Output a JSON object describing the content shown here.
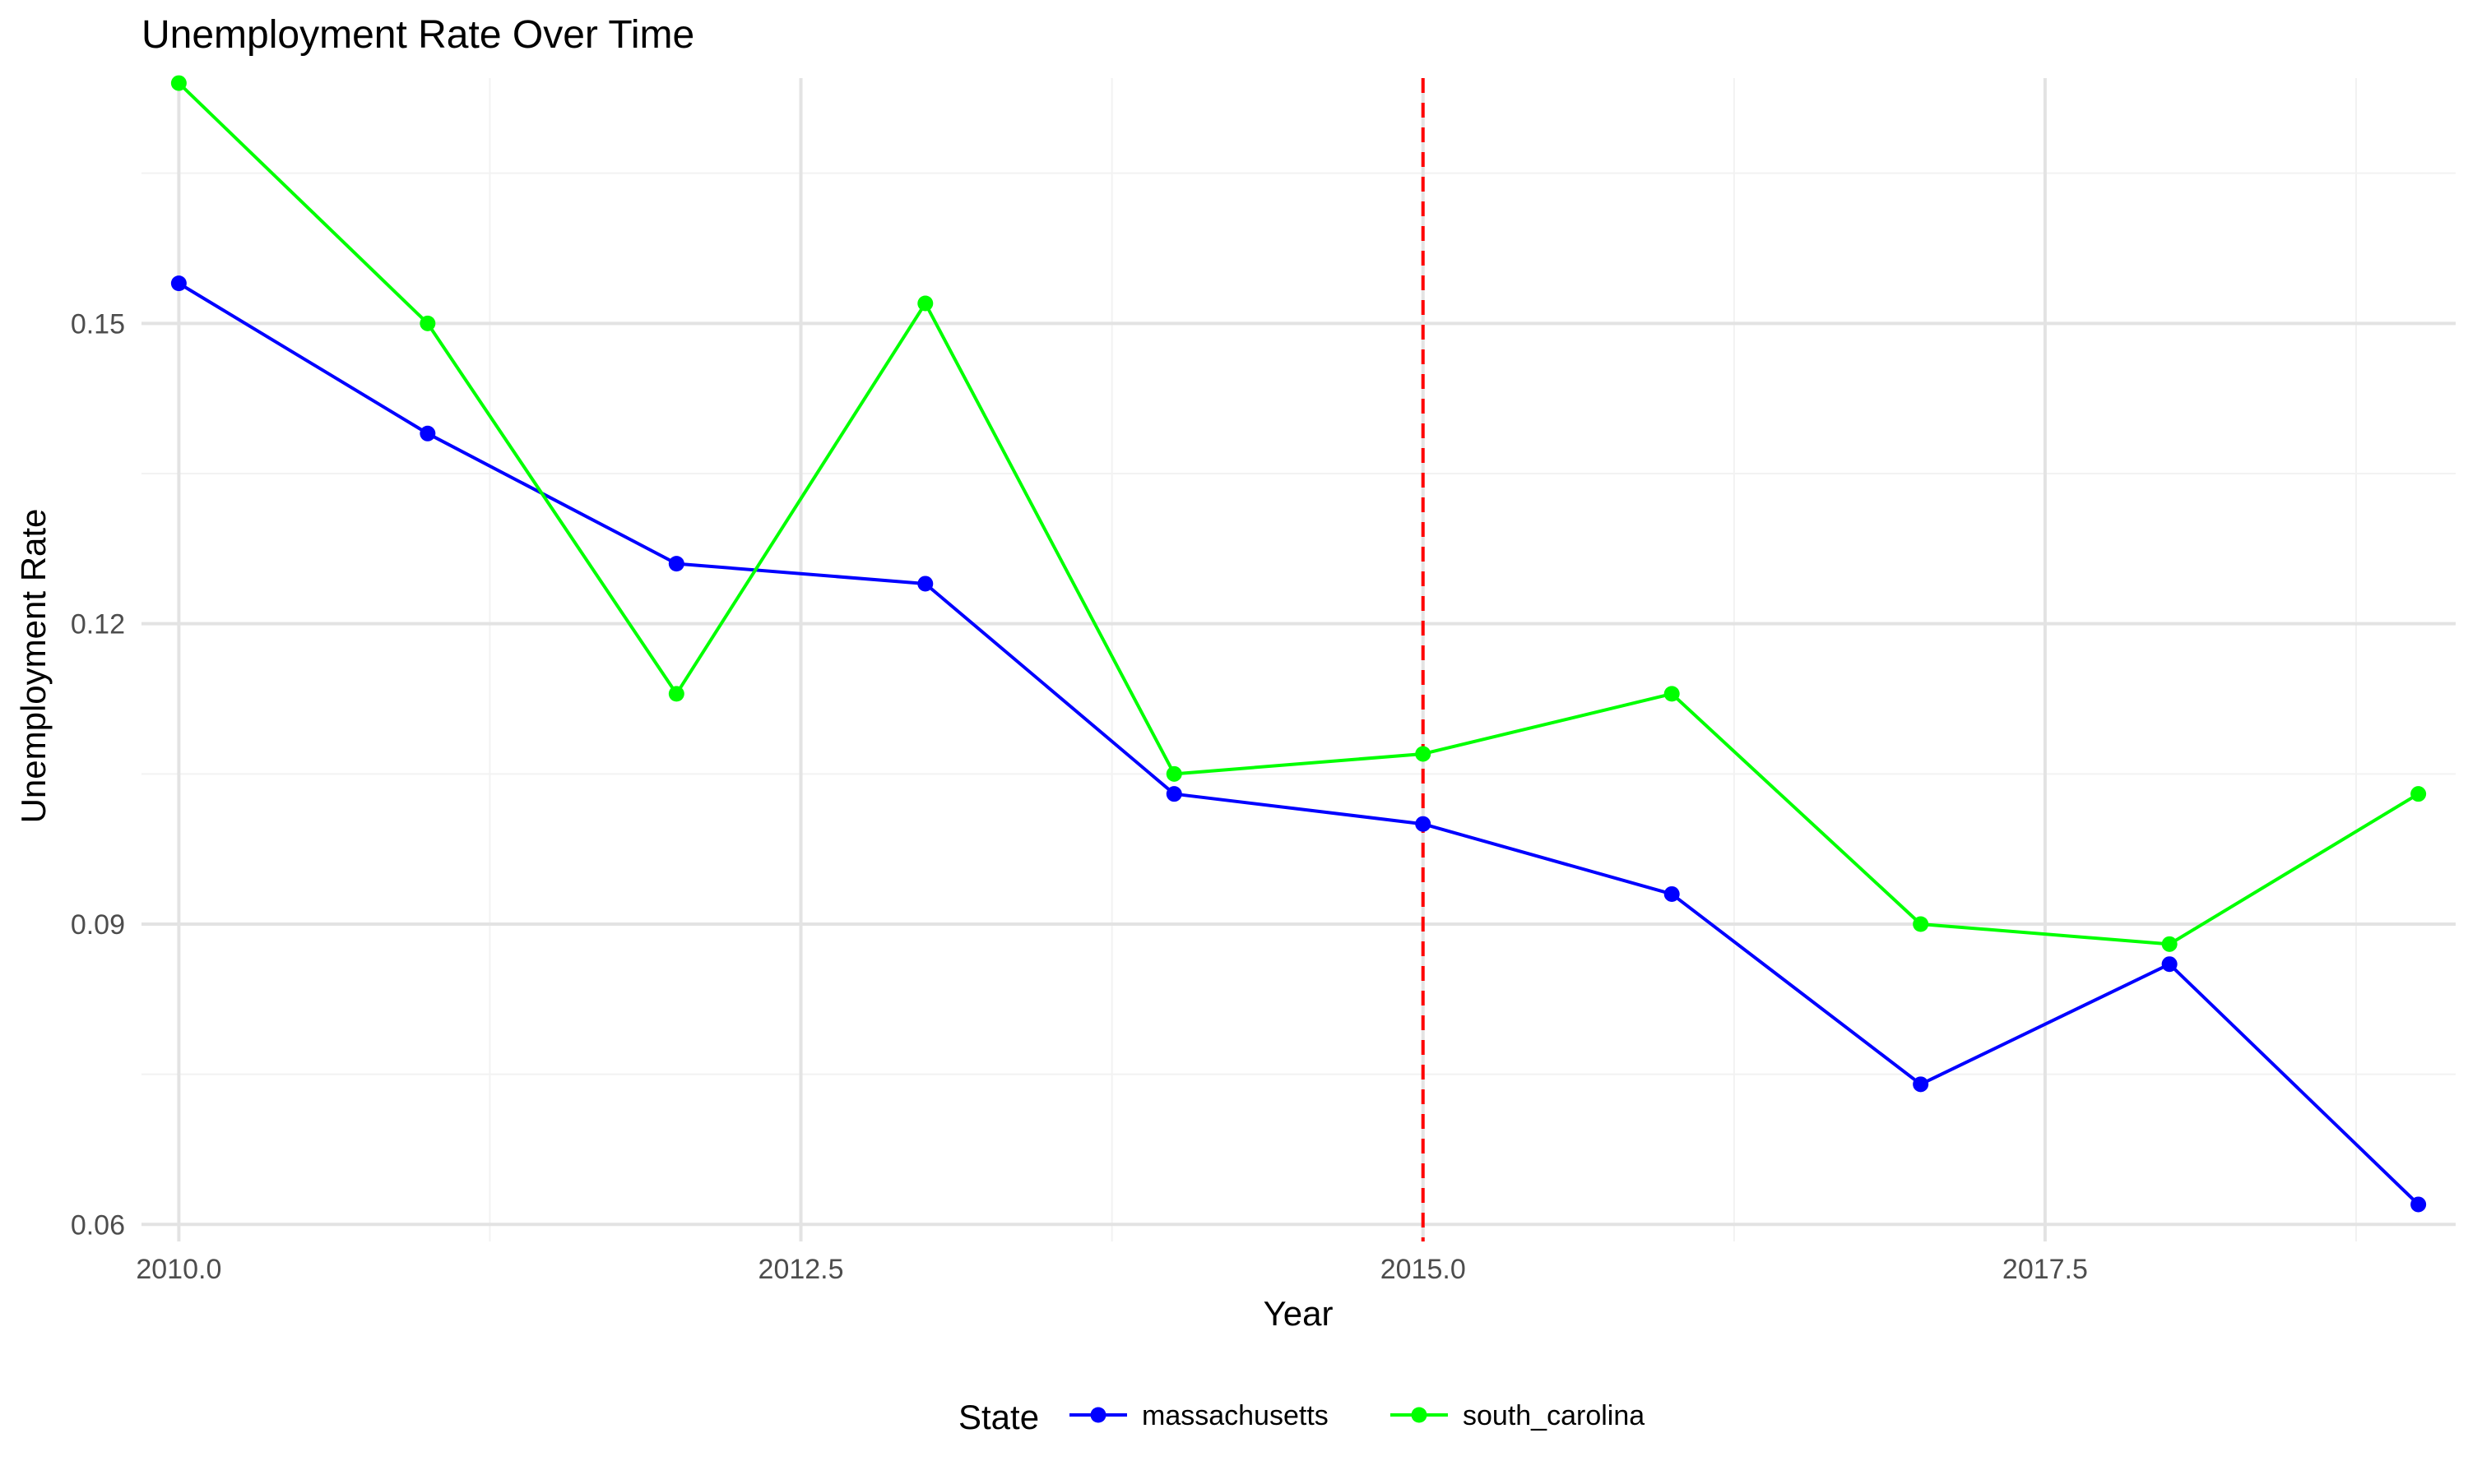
{
  "chart_data": {
    "type": "line",
    "title": "Unemployment Rate Over Time",
    "xlabel": "Year",
    "ylabel": "Unemployment Rate",
    "xlim": [
      2009.85,
      2019.15
    ],
    "ylim": [
      0.0583,
      0.1745
    ],
    "x_ticks": [
      2010.0,
      2012.5,
      2015.0,
      2017.5
    ],
    "x_tick_labels": [
      "2010.0",
      "2012.5",
      "2015.0",
      "2017.5"
    ],
    "y_ticks": [
      0.06,
      0.09,
      0.12,
      0.15
    ],
    "y_tick_labels": [
      "0.06",
      "0.09",
      "0.12",
      "0.15"
    ],
    "grid": true,
    "vline": {
      "x": 2015,
      "color": "#ff0000",
      "style": "dashed"
    },
    "legend": {
      "title": "State",
      "position": "bottom"
    },
    "x": [
      2010,
      2011,
      2012,
      2013,
      2014,
      2015,
      2016,
      2017,
      2018,
      2019
    ],
    "series": [
      {
        "name": "massachusetts",
        "color": "#0000ff",
        "values": [
          0.154,
          0.139,
          0.126,
          0.124,
          0.103,
          0.1,
          0.093,
          0.074,
          0.086,
          0.062
        ]
      },
      {
        "name": "south_carolina",
        "color": "#00ff00",
        "values": [
          0.174,
          0.15,
          0.113,
          0.152,
          0.105,
          0.107,
          0.113,
          0.09,
          0.088,
          0.103
        ]
      }
    ]
  }
}
